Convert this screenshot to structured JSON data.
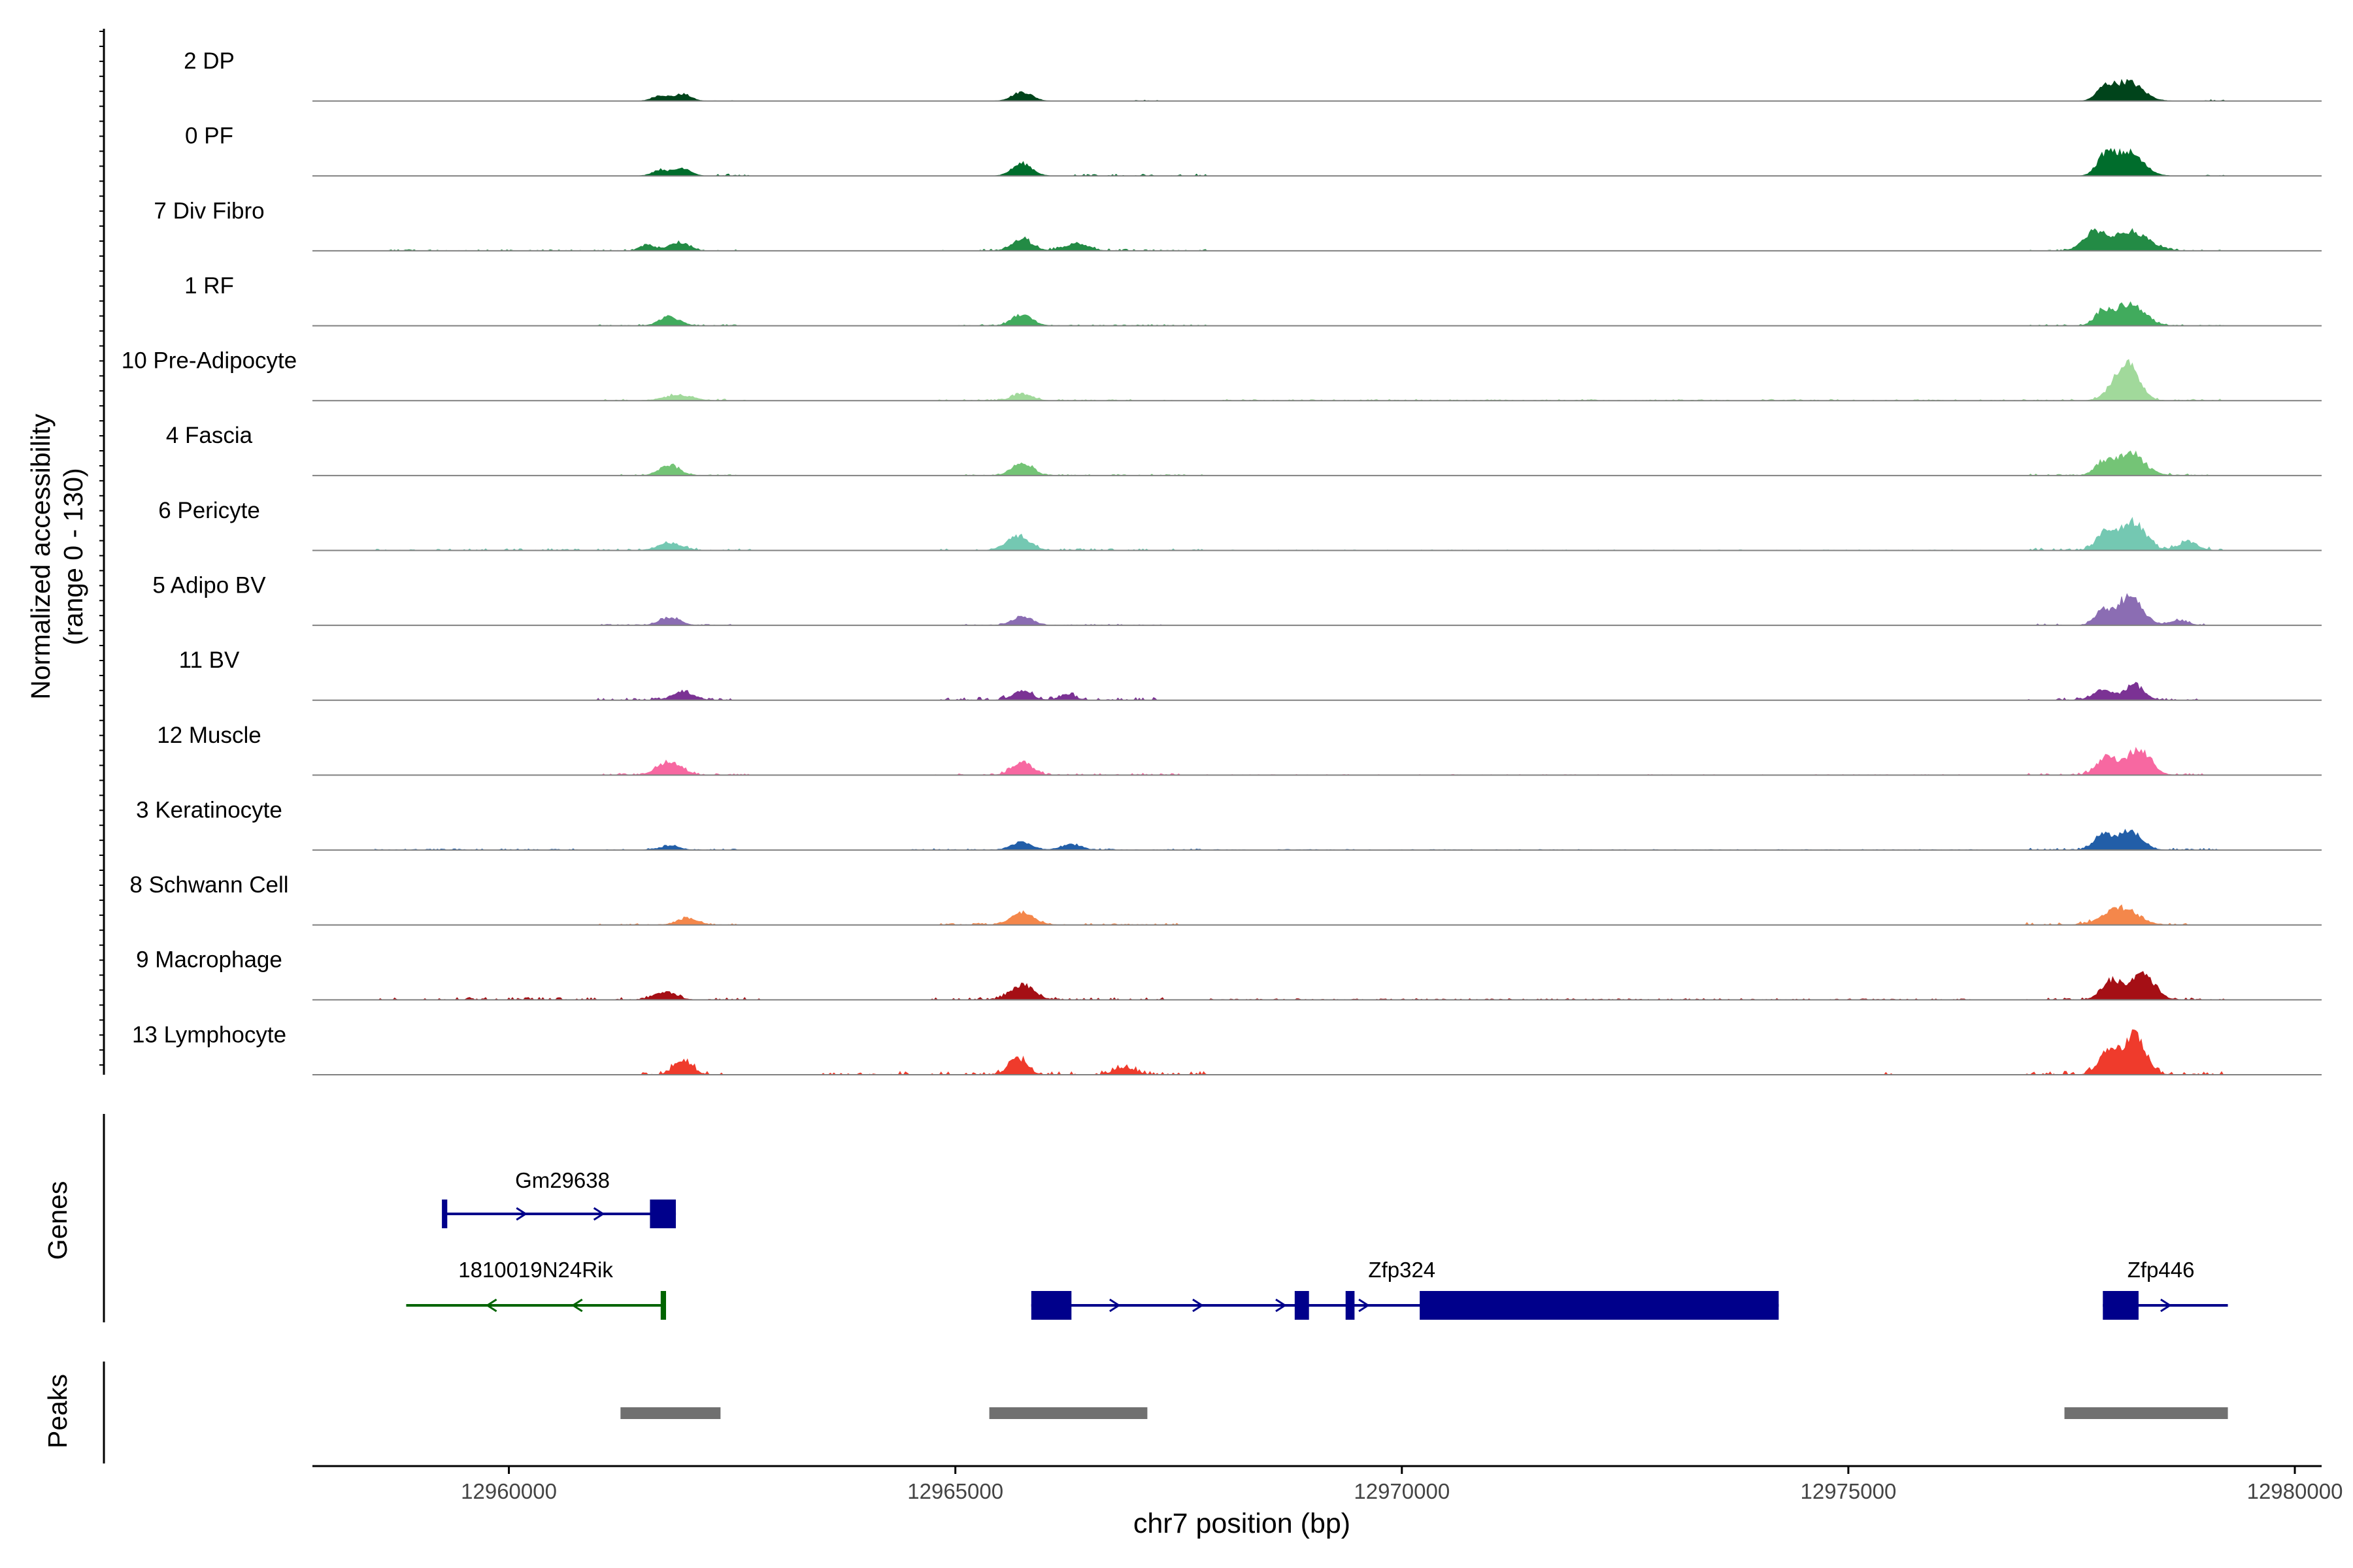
{
  "chart_data": {
    "type": "area",
    "title": "",
    "xlabel": "chr7 position (bp)",
    "ylabel_line1": "Normalized accessibility",
    "ylabel_line2": "(range 0 - 130)",
    "xlim": [
      12957800,
      12980300
    ],
    "ylim": [
      0,
      130
    ],
    "xticks": [
      12960000,
      12965000,
      12970000,
      12975000,
      12980000
    ],
    "xtick_labels": [
      "12960000",
      "12965000",
      "12970000",
      "12975000",
      "12980000"
    ],
    "series": [
      {
        "name": "2 DP",
        "color": "#00441b",
        "peaks": [
          [
            12961700,
            10,
            90
          ],
          [
            12961950,
            12,
            90
          ],
          [
            12965750,
            16,
            110
          ],
          [
            12977870,
            20,
            90
          ],
          [
            12978130,
            34,
            160
          ]
        ],
        "noise": [
          [
            12962300,
            12962500,
            2
          ],
          [
            12967000,
            12967400,
            2
          ],
          [
            12979000,
            12979200,
            2
          ]
        ]
      },
      {
        "name": "0 PF",
        "color": "#006d2c",
        "peaks": [
          [
            12961700,
            11,
            90
          ],
          [
            12961950,
            14,
            90
          ],
          [
            12965750,
            22,
            110
          ],
          [
            12977870,
            30,
            90
          ],
          [
            12978130,
            42,
            160
          ]
        ],
        "noise": [
          [
            12962300,
            12962700,
            3
          ],
          [
            12966200,
            12967800,
            3
          ],
          [
            12979000,
            12979200,
            2
          ]
        ]
      },
      {
        "name": "7 Div Fibro",
        "color": "#238b45",
        "peaks": [
          [
            12961550,
            11,
            80
          ],
          [
            12961900,
            15,
            110
          ],
          [
            12965750,
            20,
            110
          ],
          [
            12966350,
            13,
            130
          ],
          [
            12977750,
            30,
            120
          ],
          [
            12978150,
            35,
            200
          ]
        ],
        "noise": [
          [
            12958500,
            12962600,
            2
          ],
          [
            12964800,
            12967800,
            3
          ],
          [
            12977000,
            12979200,
            3
          ]
        ]
      },
      {
        "name": "1 RF",
        "color": "#41ab5d",
        "peaks": [
          [
            12961800,
            16,
            110
          ],
          [
            12965750,
            20,
            110
          ],
          [
            12977850,
            23,
            90
          ],
          [
            12978150,
            38,
            160
          ]
        ],
        "noise": [
          [
            12961000,
            12962600,
            2
          ],
          [
            12965000,
            12967800,
            2
          ],
          [
            12977000,
            12979200,
            2
          ]
        ]
      },
      {
        "name": "10 Pre-Adipocyte",
        "color": "#a1d99b",
        "peaks": [
          [
            12961900,
            10,
            150
          ],
          [
            12965750,
            12,
            110
          ],
          [
            12978000,
            22,
            120
          ],
          [
            12978150,
            52,
            120
          ]
        ],
        "noise": [
          [
            12961000,
            12962700,
            3
          ],
          [
            12964800,
            12967500,
            2
          ],
          [
            12968000,
            12977500,
            2
          ],
          [
            12977500,
            12979200,
            3
          ]
        ]
      },
      {
        "name": "4 Fascia",
        "color": "#74c476",
        "peaks": [
          [
            12961800,
            18,
            110
          ],
          [
            12965750,
            23,
            110
          ],
          [
            12977850,
            20,
            90
          ],
          [
            12978150,
            38,
            160
          ]
        ],
        "noise": [
          [
            12961000,
            12962600,
            2
          ],
          [
            12965000,
            12967800,
            2
          ],
          [
            12977000,
            12979200,
            3
          ]
        ]
      },
      {
        "name": "6 Pericyte",
        "color": "#74c8b2",
        "peaks": [
          [
            12961800,
            13,
            130
          ],
          [
            12965700,
            24,
            130
          ],
          [
            12977900,
            34,
            110
          ],
          [
            12978200,
            50,
            130
          ],
          [
            12978800,
            15,
            110
          ]
        ],
        "noise": [
          [
            12958500,
            12962700,
            3
          ],
          [
            12964800,
            12967800,
            3
          ],
          [
            12967800,
            12976500,
            1
          ],
          [
            12977000,
            12979200,
            4
          ]
        ]
      },
      {
        "name": "5 Adipo BV",
        "color": "#8b6db3",
        "peaks": [
          [
            12961800,
            14,
            110
          ],
          [
            12965750,
            16,
            110
          ],
          [
            12977850,
            22,
            90
          ],
          [
            12978150,
            50,
            140
          ],
          [
            12978700,
            8,
            100
          ]
        ],
        "noise": [
          [
            12961000,
            12962500,
            2
          ],
          [
            12965000,
            12967300,
            2
          ],
          [
            12977000,
            12979000,
            3
          ]
        ]
      },
      {
        "name": "11 BV",
        "color": "#7b3294",
        "peaks": [
          [
            12961950,
            14,
            120
          ],
          [
            12965750,
            16,
            110
          ],
          [
            12966250,
            10,
            90
          ],
          [
            12977850,
            18,
            110
          ],
          [
            12978200,
            25,
            110
          ]
        ],
        "noise": [
          [
            12961000,
            12962500,
            4
          ],
          [
            12964500,
            12967300,
            5
          ],
          [
            12977000,
            12979000,
            4
          ]
        ]
      },
      {
        "name": "12 Muscle",
        "color": "#f768a1",
        "peaks": [
          [
            12961800,
            24,
            130
          ],
          [
            12965750,
            24,
            110
          ],
          [
            12977900,
            33,
            110
          ],
          [
            12978250,
            45,
            130
          ]
        ],
        "noise": [
          [
            12961000,
            12962700,
            3
          ],
          [
            12964700,
            12967500,
            3
          ],
          [
            12967800,
            12976500,
            1
          ],
          [
            12977000,
            12979000,
            4
          ]
        ]
      },
      {
        "name": "3 Keratinocyte",
        "color": "#225ea8",
        "peaks": [
          [
            12961800,
            7,
            110
          ],
          [
            12965750,
            14,
            110
          ],
          [
            12966300,
            10,
            110
          ],
          [
            12977850,
            26,
            100
          ],
          [
            12978150,
            32,
            130
          ]
        ],
        "noise": [
          [
            12958500,
            12962600,
            2
          ],
          [
            12964500,
            12967800,
            2
          ],
          [
            12967800,
            12976500,
            1
          ],
          [
            12977000,
            12979200,
            3
          ]
        ]
      },
      {
        "name": "8 Schwann Cell",
        "color": "#f4874b",
        "peaks": [
          [
            12962000,
            12,
            110
          ],
          [
            12965750,
            22,
            130
          ],
          [
            12978050,
            30,
            180
          ]
        ],
        "noise": [
          [
            12961000,
            12962600,
            2
          ],
          [
            12964800,
            12967500,
            3
          ],
          [
            12977000,
            12979000,
            4
          ]
        ]
      },
      {
        "name": "9 Macrophage",
        "color": "#a50f15",
        "peaks": [
          [
            12961750,
            14,
            120
          ],
          [
            12965750,
            26,
            130
          ],
          [
            12977950,
            34,
            110
          ],
          [
            12978300,
            45,
            130
          ]
        ],
        "noise": [
          [
            12958500,
            12962800,
            4
          ],
          [
            12964700,
            12967600,
            4
          ],
          [
            12967800,
            12976500,
            2
          ],
          [
            12977000,
            12979200,
            4
          ]
        ]
      },
      {
        "name": "13 Lymphocyte",
        "color": "#ef3b2c",
        "peaks": [
          [
            12961950,
            26,
            100
          ],
          [
            12965700,
            28,
            100
          ],
          [
            12966900,
            13,
            110
          ],
          [
            12977900,
            40,
            100
          ],
          [
            12978200,
            75,
            120
          ]
        ],
        "noise": [
          [
            12961500,
            12962400,
            6
          ],
          [
            12963500,
            12967800,
            6
          ],
          [
            12975300,
            12975500,
            5
          ],
          [
            12977000,
            12979200,
            6
          ]
        ]
      }
    ],
    "genes": {
      "label": "Genes",
      "items": [
        {
          "name": "Gm29638",
          "strand": "+",
          "row": 0,
          "color": "#00008b",
          "start": 12959270,
          "end": 12961870,
          "exons": [
            [
              12959250,
              12959310
            ],
            [
              12961580,
              12961870
            ]
          ]
        },
        {
          "name": "1810019N24Rik",
          "strand": "-",
          "row": 1,
          "color": "#006400",
          "start": 12958850,
          "end": 12961730,
          "exons": [
            [
              12961700,
              12961760
            ]
          ]
        },
        {
          "name": "Zfp324",
          "strand": "+",
          "row": 1,
          "color": "#00008b",
          "start": 12965850,
          "end": 12974220,
          "exons": [
            [
              12965850,
              12966300
            ],
            [
              12968800,
              12968960
            ],
            [
              12969370,
              12969470
            ],
            [
              12970200,
              12974220
            ]
          ]
        },
        {
          "name": "Zfp446",
          "strand": "+",
          "row": 1,
          "color": "#00008b",
          "start": 12977850,
          "end": 12979250,
          "exons": [
            [
              12977850,
              12978250
            ]
          ]
        }
      ]
    },
    "peaks_track": {
      "label": "Peaks",
      "color": "#707070",
      "regions": [
        [
          12961250,
          12962370
        ],
        [
          12965380,
          12967150
        ],
        [
          12977420,
          12979250
        ]
      ]
    }
  }
}
